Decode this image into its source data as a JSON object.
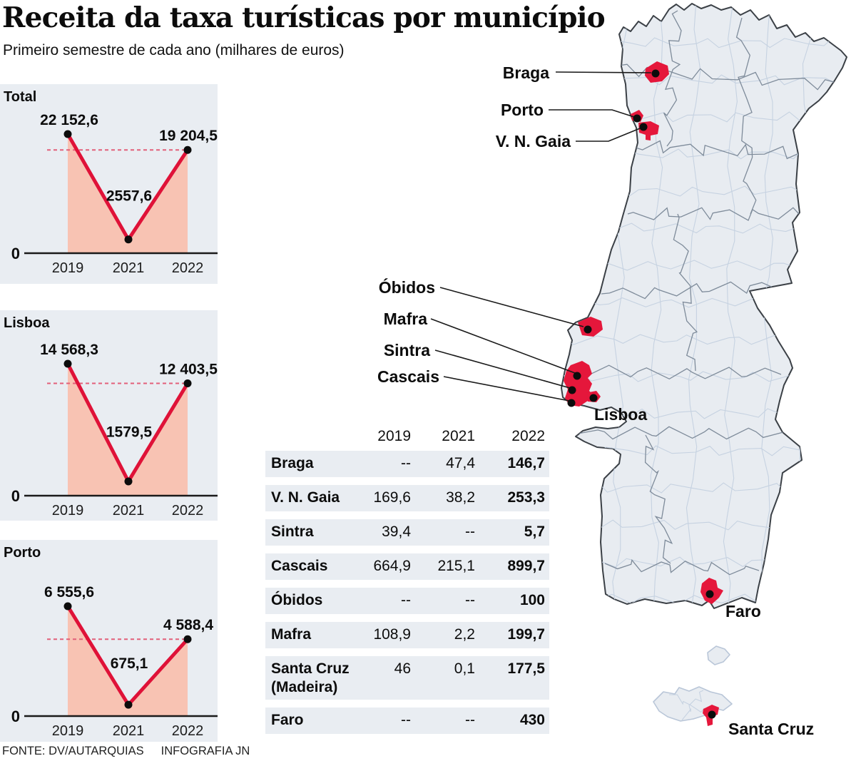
{
  "header": {
    "title": "Receita da taxa turísticas por município",
    "subtitle": "Primeiro semestre de cada ano (milhares de euros)"
  },
  "footer": {
    "source": "FONTE: DV/AUTARQUIAS",
    "credit": "INFOGRAFIA JN"
  },
  "colors": {
    "accent_red": "#e5173b",
    "line_red": "#df1238",
    "area_pink": "#f8c3b3",
    "dashed_red": "#e2607a",
    "panel_bg": "#e9edf2",
    "map_fill": "#e8ecf1",
    "map_outline": "#3b4046",
    "district_border": "#7e8b9a",
    "municipality_border": "#c6d2e1"
  },
  "chart_data": [
    {
      "type": "line",
      "name": "Total",
      "categories": [
        "2019",
        "2021",
        "2022"
      ],
      "values": [
        22152.6,
        2557.6,
        19204.5
      ],
      "value_labels": [
        "22 152,6",
        "2557,6",
        "19 204,5"
      ],
      "baseline_label": "0",
      "ylim": [
        0,
        22152.6
      ],
      "grid": false,
      "dashed_reference": "2022 value"
    },
    {
      "type": "line",
      "name": "Lisboa",
      "categories": [
        "2019",
        "2021",
        "2022"
      ],
      "values": [
        14568.3,
        1579.5,
        12403.5
      ],
      "value_labels": [
        "14 568,3",
        "1579,5",
        "12 403,5"
      ],
      "baseline_label": "0",
      "ylim": [
        0,
        14568.3
      ],
      "grid": false,
      "dashed_reference": "2022 value"
    },
    {
      "type": "line",
      "name": "Porto",
      "categories": [
        "2019",
        "2021",
        "2022"
      ],
      "values": [
        6555.6,
        675.1,
        4588.4
      ],
      "value_labels": [
        "6 555,6",
        "675,1",
        "4 588,4"
      ],
      "baseline_label": "0",
      "ylim": [
        0,
        6555.6
      ],
      "grid": false,
      "dashed_reference": "2022 value"
    }
  ],
  "table": {
    "columns": [
      "2019",
      "2021",
      "2022"
    ],
    "rows": [
      {
        "name": "Braga",
        "values": [
          "--",
          "47,4",
          "146,7"
        ]
      },
      {
        "name": "V. N. Gaia",
        "values": [
          "169,6",
          "38,2",
          "253,3"
        ]
      },
      {
        "name": "Sintra",
        "values": [
          "39,4",
          "--",
          "5,7"
        ]
      },
      {
        "name": "Cascais",
        "values": [
          "664,9",
          "215,1",
          "899,7"
        ]
      },
      {
        "name": "Óbidos",
        "values": [
          "--",
          "--",
          "100"
        ]
      },
      {
        "name": "Mafra",
        "values": [
          "108,9",
          "2,2",
          "199,7"
        ]
      },
      {
        "name": "Santa Cruz",
        "name2": "(Madeira)",
        "values": [
          "46",
          "0,1",
          "177,5"
        ]
      },
      {
        "name": "Faro",
        "values": [
          "--",
          "--",
          "430"
        ]
      }
    ]
  },
  "map": {
    "labels": [
      {
        "id": "braga",
        "text": "Braga"
      },
      {
        "id": "porto",
        "text": "Porto"
      },
      {
        "id": "gaia",
        "text": "V. N. Gaia"
      },
      {
        "id": "obidos",
        "text": "Óbidos"
      },
      {
        "id": "mafra",
        "text": "Mafra"
      },
      {
        "id": "sintra",
        "text": "Sintra"
      },
      {
        "id": "cascais",
        "text": "Cascais"
      },
      {
        "id": "lisboa",
        "text": "Lisboa"
      },
      {
        "id": "faro",
        "text": "Faro"
      },
      {
        "id": "santacruz",
        "text": "Santa Cruz"
      }
    ]
  }
}
